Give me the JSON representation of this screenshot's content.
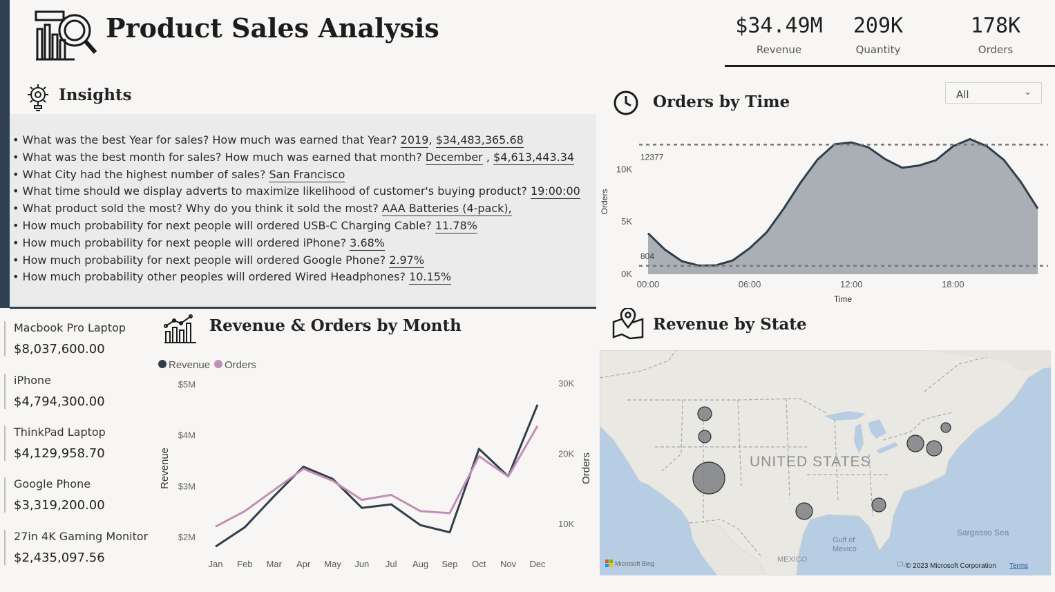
{
  "header": {
    "title": "Product Sales Analysis",
    "kpis": [
      {
        "value": "$34.49M",
        "label": "Revenue"
      },
      {
        "value": "209K",
        "label": "Quantity"
      },
      {
        "value": "178K",
        "label": "Orders"
      }
    ]
  },
  "insights": {
    "title": "Insights",
    "items": [
      {
        "q": "What was the best Year for sales? How much was earned that Year?",
        "answers": [
          "2019",
          "$34,483,365.68"
        ]
      },
      {
        "q": "What was the best month for sales? How much was earned that month?",
        "answers": [
          "December",
          "$4,613,443.34"
        ]
      },
      {
        "q": "What City had the highest number of sales?",
        "answers": [
          "San Francisco"
        ]
      },
      {
        "q": "What time should we display adverts to maximize likelihood of customer's buying product?",
        "answers": [
          "19:00:00"
        ]
      },
      {
        "q": "What product sold the most? Why do you think it sold the most?",
        "answers": [
          "AAA Batteries (4-pack),"
        ]
      },
      {
        "q": "How much probability for next people will ordered USB-C Charging Cable?",
        "answers": [
          "11.78%"
        ]
      },
      {
        "q": "How much probability for next people will ordered iPhone?",
        "answers": [
          "3.68%"
        ]
      },
      {
        "q": "How much probability for next people will ordered Google Phone?",
        "answers": [
          "2.97%"
        ]
      },
      {
        "q": "How much probability other peoples will ordered Wired Headphones?",
        "answers": [
          "10.15%"
        ]
      }
    ]
  },
  "orders_by_time": {
    "title": "Orders by Time",
    "filter": {
      "selected": "All"
    }
  },
  "revenue_orders_by_month": {
    "title": "Revenue & Orders by Month"
  },
  "revenue_by_state": {
    "title": "Revenue by State",
    "map_labels": {
      "country": "UNITED STATES",
      "gulf": [
        "Gulf of",
        "Mexico"
      ],
      "sea": "Sargasso Sea",
      "mexico": "MEXICO",
      "cuba": "CU",
      "copyright": "© 2023 Microsoft Corporation",
      "terms": "Terms",
      "brand": "Microsoft Bing"
    },
    "bubbles": [
      {
        "region": "Washington",
        "size": "small"
      },
      {
        "region": "Oregon",
        "size": "small"
      },
      {
        "region": "California",
        "size": "large"
      },
      {
        "region": "Texas",
        "size": "small"
      },
      {
        "region": "Georgia",
        "size": "small"
      },
      {
        "region": "New York",
        "size": "medium"
      },
      {
        "region": "Massachusetts",
        "size": "small"
      },
      {
        "region": "Maine",
        "size": "small"
      }
    ]
  },
  "top_products": [
    {
      "name": "Macbook Pro Laptop",
      "revenue": "$8,037,600.00"
    },
    {
      "name": "iPhone",
      "revenue": "$4,794,300.00"
    },
    {
      "name": "ThinkPad Laptop",
      "revenue": "$4,129,958.70"
    },
    {
      "name": "Google Phone",
      "revenue": "$3,319,200.00"
    },
    {
      "name": "27in 4K Gaming Monitor",
      "revenue": "$2,435,097.56"
    }
  ],
  "chart_data": [
    {
      "type": "area",
      "title": "Orders by Time",
      "xlabel": "Time",
      "ylabel": "Orders",
      "x_ticks": [
        "00:00",
        "06:00",
        "12:00",
        "18:00"
      ],
      "y_ticks": [
        "0K",
        "5K",
        "10K"
      ],
      "ylim": [
        0,
        12800
      ],
      "x": [
        0,
        1,
        2,
        3,
        4,
        5,
        6,
        7,
        8,
        9,
        10,
        11,
        12,
        13,
        14,
        15,
        16,
        17,
        18,
        19,
        20,
        21,
        22,
        23
      ],
      "series": [
        {
          "values": [
            3910,
            2350,
            1243,
            831,
            854,
            1321,
            2482,
            4011,
            6256,
            8748,
            10944,
            12411,
            12587,
            12129,
            10984,
            10175,
            10384,
            10899,
            12228,
            12905,
            12228,
            10921,
            8822,
            6275
          ]
        }
      ],
      "reference_lines": [
        {
          "label": "12377",
          "value": 12377
        },
        {
          "label": "804",
          "value": 804
        }
      ],
      "color": "#2f3e4b",
      "fill": "#a9afb5"
    },
    {
      "type": "line",
      "title": "Revenue & Orders by Month",
      "categories": [
        "Jan",
        "Feb",
        "Mar",
        "Apr",
        "May",
        "Jun",
        "Jul",
        "Aug",
        "Sep",
        "Oct",
        "Nov",
        "Dec"
      ],
      "ylabel": "Revenue",
      "y2label": "Orders",
      "y_ticks": [
        "$2M",
        "$3M",
        "$4M",
        "$5M"
      ],
      "y2_ticks": [
        "10K",
        "20K",
        "30K"
      ],
      "ylim": [
        1.7,
        5.3
      ],
      "y2lim": [
        6000,
        32000
      ],
      "legend": "top-left",
      "series": [
        {
          "name": "Revenue",
          "axis": "left",
          "color": "#2f3e4b",
          "values": [
            1.82,
            2.2,
            2.81,
            3.39,
            3.15,
            2.58,
            2.65,
            2.24,
            2.1,
            3.74,
            3.2,
            4.61
          ]
        },
        {
          "name": "Orders",
          "axis": "right",
          "color": "#c08fb3",
          "values": [
            9700,
            11900,
            14900,
            17900,
            16200,
            13500,
            14200,
            11900,
            11600,
            19700,
            16800,
            24000
          ]
        }
      ]
    }
  ]
}
